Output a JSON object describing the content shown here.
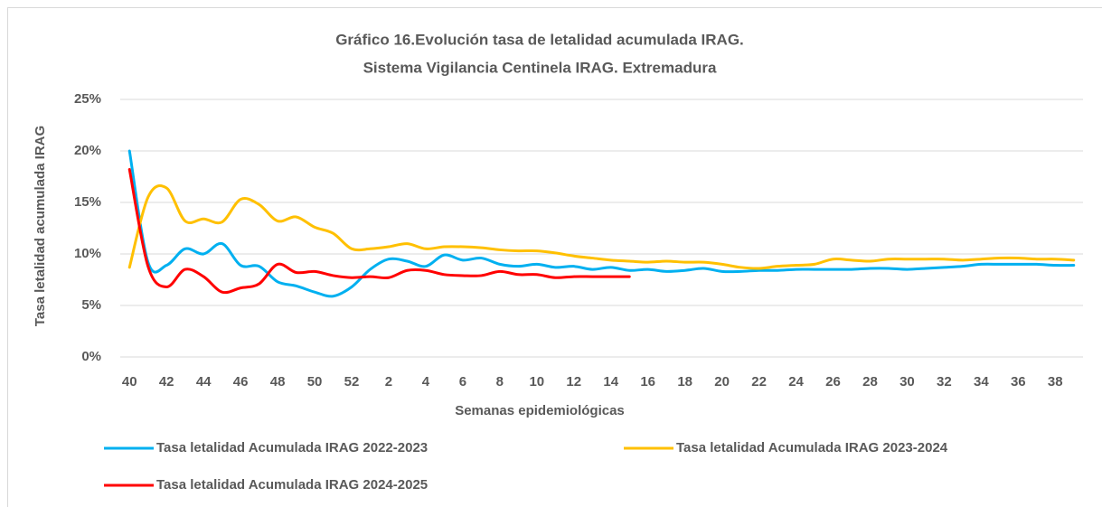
{
  "chart_data": {
    "type": "line",
    "title": [
      "Gráfico 16.Evolución tasa de letalidad acumulada IRAG.",
      "Sistema Vigilancia Centinela IRAG. Extremadura"
    ],
    "x_label": "Semanas epidemiológicas",
    "y_label": "Tasa letalidad acumulada IRAG",
    "categories": [
      "40",
      null,
      "42",
      null,
      "44",
      null,
      "46",
      null,
      "48",
      null,
      "50",
      null,
      "52",
      null,
      "2",
      null,
      "4",
      null,
      "6",
      null,
      "8",
      null,
      "10",
      null,
      "12",
      null,
      "14",
      null,
      "16",
      null,
      "18",
      null,
      "20",
      null,
      "22",
      null,
      "24",
      null,
      "26",
      null,
      "28",
      null,
      "30",
      null,
      "32",
      null,
      "34",
      null,
      "36",
      null,
      "38",
      null
    ],
    "series": [
      {
        "name": "Tasa letalidad Acumulada IRAG 2022-2023",
        "color": "#00b0f0",
        "values": [
          20,
          9.2,
          8.9,
          10.5,
          10.0,
          11.0,
          8.9,
          8.8,
          7.3,
          6.9,
          6.3,
          5.9,
          6.8,
          8.5,
          9.5,
          9.3,
          8.8,
          9.9,
          9.4,
          9.6,
          9.0,
          8.8,
          9.0,
          8.7,
          8.8,
          8.5,
          8.7,
          8.4,
          8.5,
          8.3,
          8.4,
          8.6,
          8.3,
          8.3,
          8.4,
          8.4,
          8.5,
          8.5,
          8.5,
          8.5,
          8.6,
          8.6,
          8.5,
          8.6,
          8.7,
          8.8,
          9.0,
          9.0,
          9.0,
          9.0,
          8.9,
          8.9
        ]
      },
      {
        "name": "Tasa letalidad Acumulada IRAG 2023-2024",
        "color": "#ffc000",
        "values": [
          8.7,
          15.5,
          16.4,
          13.2,
          13.4,
          13.1,
          15.3,
          14.8,
          13.2,
          13.6,
          12.6,
          12.0,
          10.5,
          10.5,
          10.7,
          11.0,
          10.5,
          10.7,
          10.7,
          10.6,
          10.4,
          10.3,
          10.3,
          10.1,
          9.8,
          9.6,
          9.4,
          9.3,
          9.2,
          9.3,
          9.2,
          9.2,
          9.0,
          8.7,
          8.6,
          8.8,
          8.9,
          9.0,
          9.5,
          9.4,
          9.3,
          9.5,
          9.5,
          9.5,
          9.5,
          9.4,
          9.5,
          9.6,
          9.6,
          9.5,
          9.5,
          9.4
        ]
      },
      {
        "name": "Tasa letalidad Acumulada IRAG 2024-2025",
        "color": "#ff0000",
        "values": [
          18.2,
          8.8,
          6.8,
          8.5,
          7.8,
          6.3,
          6.7,
          7.1,
          9.0,
          8.2,
          8.3,
          7.9,
          7.7,
          7.8,
          7.7,
          8.4,
          8.4,
          8.0,
          7.9,
          7.9,
          8.3,
          8.0,
          8.0,
          7.7,
          7.8,
          7.8,
          7.8,
          7.8,
          null,
          null,
          null,
          null,
          null,
          null,
          null,
          null,
          null,
          null,
          null,
          null,
          null,
          null,
          null,
          null,
          null,
          null,
          null,
          null,
          null,
          null,
          null,
          null
        ]
      }
    ],
    "ylim": [
      0,
      25
    ],
    "yticks": [
      {
        "value": 0,
        "label": "0%"
      },
      {
        "value": 5,
        "label": "5%"
      },
      {
        "value": 10,
        "label": "10%"
      },
      {
        "value": 15,
        "label": "15%"
      },
      {
        "value": 20,
        "label": "20%"
      },
      {
        "value": 25,
        "label": "25%"
      }
    ],
    "grid": true,
    "legend": "bottom"
  }
}
